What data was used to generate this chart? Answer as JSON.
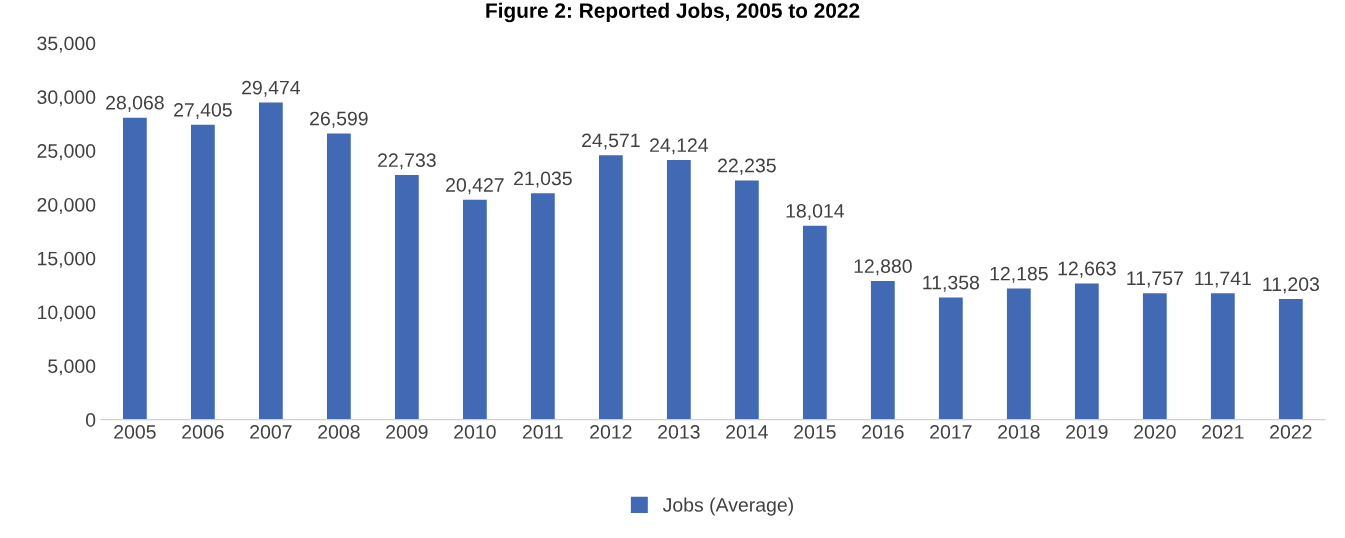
{
  "chart_data": {
    "type": "bar",
    "title": "Figure 2: Reported Jobs, 2005 to 2022",
    "categories": [
      "2005",
      "2006",
      "2007",
      "2008",
      "2009",
      "2010",
      "2011",
      "2012",
      "2013",
      "2014",
      "2015",
      "2016",
      "2017",
      "2018",
      "2019",
      "2020",
      "2021",
      "2022"
    ],
    "series": [
      {
        "name": "Jobs (Average)",
        "color": "#4169b4",
        "values": [
          28068,
          27405,
          29474,
          26599,
          22733,
          20427,
          21035,
          24571,
          24124,
          22235,
          18014,
          12880,
          11358,
          12185,
          12663,
          11757,
          11741,
          11203
        ],
        "value_labels": [
          "28,068",
          "27,405",
          "29,474",
          "26,599",
          "22,733",
          "20,427",
          "21,035",
          "24,571",
          "24,124",
          "22,235",
          "18,014",
          "12,880",
          "11,358",
          "12,185",
          "12,663",
          "11,757",
          "11,741",
          "11,203"
        ]
      }
    ],
    "ylim": [
      0,
      35000
    ],
    "yticks": [
      {
        "value": 0,
        "label": "0"
      },
      {
        "value": 5000,
        "label": "5,000"
      },
      {
        "value": 10000,
        "label": "10,000"
      },
      {
        "value": 15000,
        "label": "15,000"
      },
      {
        "value": 20000,
        "label": "20,000"
      },
      {
        "value": 25000,
        "label": "25,000"
      },
      {
        "value": 30000,
        "label": "30,000"
      },
      {
        "value": 35000,
        "label": "35,000"
      }
    ],
    "grid": false,
    "legend": "bottom"
  }
}
